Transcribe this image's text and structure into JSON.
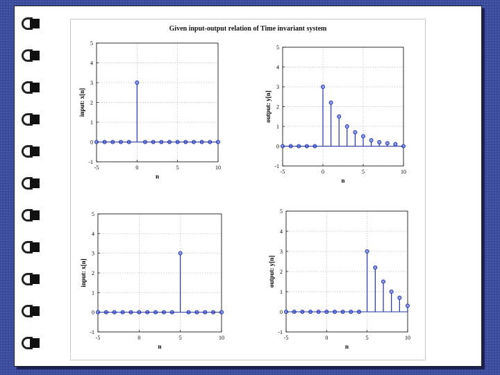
{
  "title": "Given input-output relation of Time invariant system",
  "chart_data": [
    {
      "type": "stem",
      "position": "top-left",
      "xlabel": "n",
      "ylabel": "input: x[n]",
      "xlim": [
        -5,
        10
      ],
      "ylim": [
        -1,
        5
      ],
      "xticks": [
        -5,
        0,
        5,
        10
      ],
      "yticks": [
        -1,
        0,
        1,
        2,
        3,
        4,
        5
      ],
      "grid": true,
      "x": [
        -5,
        -4,
        -3,
        -2,
        -1,
        0,
        1,
        2,
        3,
        4,
        5,
        6,
        7,
        8,
        9,
        10
      ],
      "y": [
        0,
        0,
        0,
        0,
        0,
        3,
        0,
        0,
        0,
        0,
        0,
        0,
        0,
        0,
        0,
        0
      ]
    },
    {
      "type": "stem",
      "position": "top-right",
      "xlabel": "n",
      "ylabel": "output: y[n]",
      "xlim": [
        -5,
        10
      ],
      "ylim": [
        -1,
        5
      ],
      "xticks": [
        -5,
        0,
        5,
        10
      ],
      "yticks": [
        -1,
        0,
        1,
        2,
        3,
        4,
        5
      ],
      "grid": true,
      "x": [
        -5,
        -4,
        -3,
        -2,
        -1,
        0,
        1,
        2,
        3,
        4,
        5,
        6,
        7,
        8,
        9,
        10
      ],
      "y": [
        0,
        0,
        0,
        0,
        0,
        3,
        2.2,
        1.5,
        1.0,
        0.7,
        0.5,
        0.3,
        0.2,
        0.15,
        0.1,
        0
      ]
    },
    {
      "type": "stem",
      "position": "bottom-left",
      "xlabel": "n",
      "ylabel": "input: x[n]",
      "xlim": [
        -5,
        10
      ],
      "ylim": [
        -1,
        5
      ],
      "xticks": [
        -5,
        0,
        5,
        10
      ],
      "yticks": [
        -1,
        0,
        1,
        2,
        3,
        4,
        5
      ],
      "grid": true,
      "x": [
        -5,
        -4,
        -3,
        -2,
        -1,
        0,
        1,
        2,
        3,
        4,
        5,
        6,
        7,
        8,
        9,
        10
      ],
      "y": [
        0,
        0,
        0,
        0,
        0,
        0,
        0,
        0,
        0,
        0,
        3,
        0,
        0,
        0,
        0,
        0
      ]
    },
    {
      "type": "stem",
      "position": "bottom-right",
      "xlabel": "n",
      "ylabel": "output: y[n]",
      "xlim": [
        -5,
        10
      ],
      "ylim": [
        -1,
        5
      ],
      "xticks": [
        -5,
        0,
        5,
        10
      ],
      "yticks": [
        -1,
        0,
        1,
        2,
        3,
        4,
        5
      ],
      "grid": true,
      "x": [
        -5,
        -4,
        -3,
        -2,
        -1,
        0,
        1,
        2,
        3,
        4,
        5,
        6,
        7,
        8,
        9,
        10
      ],
      "y": [
        0,
        0,
        0,
        0,
        0,
        0,
        0,
        0,
        0,
        0,
        3,
        2.2,
        1.5,
        1.0,
        0.7,
        0.3
      ]
    }
  ],
  "colors": {
    "stem": "#1f2fa8",
    "marker_fill": "#8fa0e8",
    "grid": "#b8b8b8",
    "axis": "#000000",
    "background_pattern": "#3a4a9a"
  }
}
